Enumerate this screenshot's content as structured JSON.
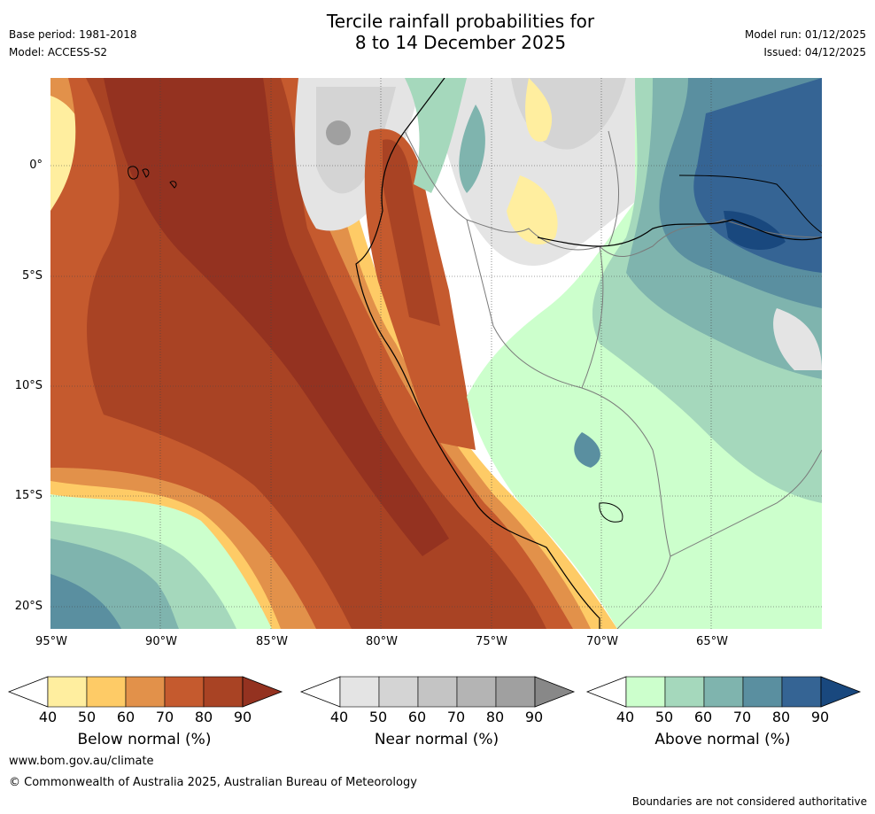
{
  "header": {
    "title_line1": "Tercile rainfall probabilities for",
    "title_line2": "8 to 14 December 2025",
    "base_period": "Base period: 1981-2018",
    "model": "Model: ACCESS-S2",
    "model_run": "Model run: 01/12/2025",
    "issued": "Issued: 04/12/2025"
  },
  "map": {
    "y_labels": [
      "0°",
      "5°S",
      "10°S",
      "15°S",
      "20°S"
    ],
    "x_labels": [
      "95°W",
      "90°W",
      "85°W",
      "80°W",
      "75°W",
      "70°W",
      "65°W"
    ]
  },
  "colorbars": [
    {
      "name": "below",
      "label": "Below normal (%)",
      "ticks": [
        "40",
        "50",
        "60",
        "70",
        "80",
        "90"
      ],
      "colors": [
        "#ffffff",
        "#ffee9f",
        "#fecb66",
        "#e2914a",
        "#c55a2e",
        "#a94324",
        "#943220"
      ]
    },
    {
      "name": "near",
      "label": "Near normal (%)",
      "ticks": [
        "40",
        "50",
        "60",
        "70",
        "80",
        "90"
      ],
      "colors": [
        "#ffffff",
        "#e4e4e4",
        "#d4d4d4",
        "#c4c4c4",
        "#b4b4b4",
        "#a0a0a0",
        "#888888"
      ]
    },
    {
      "name": "above",
      "label": "Above normal (%)",
      "ticks": [
        "40",
        "50",
        "60",
        "70",
        "80",
        "90"
      ],
      "colors": [
        "#ffffff",
        "#ccffcc",
        "#a5d8bc",
        "#7fb4ae",
        "#5a8fa0",
        "#356494",
        "#19487e"
      ]
    }
  ],
  "footer": {
    "url": "www.bom.gov.au/climate",
    "copyright": "© Commonwealth of Australia 2025, Australian Bureau of Meteorology",
    "disclaimer": "Boundaries are not considered authoritative"
  }
}
